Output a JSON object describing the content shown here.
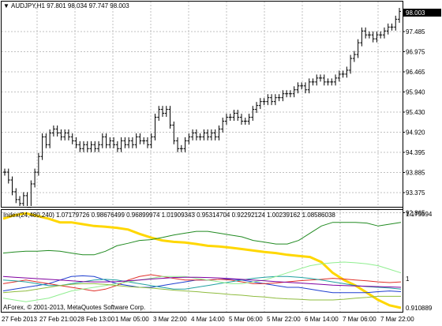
{
  "symbol_header": {
    "dropdown_glyph": "▼",
    "text": "AUDJPY,H1  97.801 98.034 97.747 98.003"
  },
  "price_tag": "98.003",
  "price_axis_labels": [
    "97.485",
    "96.975",
    "96.465",
    "95.940",
    "95.430",
    "94.920",
    "94.395",
    "93.885",
    "93.375",
    "92.865"
  ],
  "indicator": {
    "legend": "Index(24,480,240) 1.07179726 0.98676499 0.96899974 1.01909343 0.95314704 0.92292124 1.00239162 1.08586038",
    "scale_top": "1.175594",
    "scale_mid": "1",
    "scale_bottom": "0.910889"
  },
  "copyright": "AForex, © 2001-2013, MetaQuotes Software Corp.",
  "time_axis_labels": [
    "27 Feb 2013",
    "27 Feb 21:00",
    "28 Feb 13:00",
    "1 Mar 05:00",
    "3 Mar 22:00",
    "4 Mar 14:00",
    "5 Mar 06:00",
    "5 Mar 22:00",
    "6 Mar 14:00",
    "7 Mar 06:00",
    "7 Mar 22:00"
  ],
  "colors": {
    "index_yellow": "#ffd700",
    "index_green": "#228b22",
    "index_lime": "#90ee90",
    "index_red": "#e0302a",
    "index_blue": "#1f3fd0",
    "index_teal": "#20a0a0",
    "index_olive": "#8fbc3f",
    "index_purple": "#8000a0"
  },
  "chart_data": [
    {
      "type": "ohlc",
      "title": "AUDJPY,H1",
      "x_start": "27 Feb 2013",
      "x_end": "7 Mar 22:00",
      "ylim": [
        92.865,
        98.1
      ],
      "close_values": [
        93.9,
        93.7,
        93.4,
        93.2,
        93.1,
        93.3,
        93.0,
        93.6,
        93.9,
        94.3,
        94.8,
        94.6,
        94.9,
        95.0,
        94.9,
        94.8,
        94.9,
        94.8,
        94.7,
        94.6,
        94.5,
        94.6,
        94.5,
        94.6,
        94.5,
        94.6,
        94.8,
        94.6,
        94.7,
        94.6,
        94.5,
        94.7,
        94.6,
        94.7,
        94.6,
        94.8,
        94.7,
        94.7,
        94.6,
        94.8,
        95.3,
        95.5,
        95.4,
        95.5,
        95.1,
        94.7,
        94.5,
        94.5,
        94.7,
        94.8,
        94.9,
        94.8,
        94.8,
        94.9,
        94.8,
        94.9,
        94.8,
        95.0,
        95.2,
        95.3,
        95.3,
        95.4,
        95.3,
        95.2,
        95.2,
        95.3,
        95.5,
        95.6,
        95.7,
        95.7,
        95.8,
        95.7,
        95.8,
        95.8,
        95.9,
        95.9,
        95.9,
        96.0,
        96.1,
        96.1,
        96.0,
        96.2,
        96.2,
        96.3,
        96.3,
        96.2,
        96.2,
        96.2,
        96.3,
        96.4,
        96.4,
        96.5,
        96.8,
        96.9,
        97.2,
        97.5,
        97.4,
        97.4,
        97.3,
        97.4,
        97.4,
        97.5,
        97.6,
        97.6,
        97.8,
        98.0
      ]
    },
    {
      "type": "line",
      "title": "Index(24,480,240)",
      "ylim": [
        0.910889,
        1.175594
      ],
      "series": [
        {
          "color": "#ffd700",
          "values": [
            1.16,
            1.17,
            1.175,
            1.168,
            1.16,
            1.15,
            1.15,
            1.145,
            1.14,
            1.138,
            1.135,
            1.13,
            1.118,
            1.108,
            1.1,
            1.096,
            1.094,
            1.09,
            1.085,
            1.083,
            1.08,
            1.076,
            1.072,
            1.068,
            1.065,
            1.06,
            1.057,
            1.054,
            1.04,
            1.01,
            0.99,
            0.975,
            0.955,
            0.935,
            0.92,
            0.913
          ]
        },
        {
          "color": "#228b22",
          "values": [
            1.065,
            1.068,
            1.07,
            1.07,
            1.072,
            1.07,
            1.065,
            1.06,
            1.06,
            1.07,
            1.085,
            1.092,
            1.1,
            1.102,
            1.108,
            1.115,
            1.12,
            1.125,
            1.125,
            1.12,
            1.115,
            1.11,
            1.1,
            1.095,
            1.09,
            1.09,
            1.1,
            1.12,
            1.14,
            1.15,
            1.15,
            1.15,
            1.148,
            1.14,
            1.145,
            1.15
          ]
        },
        {
          "color": "#1f3fd0",
          "values": [
            0.96,
            0.965,
            0.97,
            0.975,
            0.98,
            0.99,
            1.0,
            1.002,
            1.0,
            0.99,
            0.98,
            0.975,
            0.97,
            0.97,
            0.975,
            0.98,
            0.985,
            0.99,
            0.99,
            0.992,
            0.993,
            0.99,
            0.985,
            0.98,
            0.975,
            0.97,
            0.97,
            0.965,
            0.96,
            0.955,
            0.955,
            0.955,
            0.955,
            0.958,
            0.96,
            0.958
          ]
        },
        {
          "color": "#e0302a",
          "values": [
            0.98,
            0.985,
            0.99,
            0.985,
            0.98,
            0.975,
            0.97,
            0.965,
            0.96,
            0.965,
            0.975,
            0.99,
            1.0,
            1.005,
            1.0,
            0.995,
            0.99,
            0.99,
            0.99,
            0.992,
            0.99,
            0.985,
            0.98,
            0.98,
            0.982,
            0.985,
            0.988,
            0.99,
            0.992,
            0.995,
            0.993,
            0.99,
            0.988,
            0.985,
            0.983,
            0.985
          ]
        },
        {
          "color": "#20a0a0",
          "values": [
            0.99,
            0.988,
            0.985,
            0.98,
            0.975,
            0.975,
            0.98,
            0.985,
            0.99,
            0.992,
            0.99,
            0.985,
            0.98,
            0.975,
            0.97,
            0.965,
            0.965,
            0.97,
            0.975,
            0.98,
            0.985,
            0.99,
            0.995,
            0.998,
            1.0,
            1.0,
            0.998,
            0.995,
            0.99,
            0.985,
            0.98,
            0.975,
            0.972,
            0.97,
            0.968,
            0.965
          ]
        },
        {
          "color": "#90ee90",
          "values": [
            0.94,
            0.935,
            0.93,
            0.935,
            0.94,
            0.95,
            0.96,
            0.965,
            0.97,
            0.975,
            0.98,
            0.985,
            0.99,
            0.995,
            1.0,
            1.0,
            1.0,
            0.995,
            0.99,
            0.985,
            0.98,
            0.98,
            0.985,
            0.99,
            1.0,
            1.01,
            1.02,
            1.03,
            1.035,
            1.038,
            1.04,
            1.038,
            1.035,
            1.03,
            1.02,
            1.01
          ]
        },
        {
          "color": "#8fbc3f",
          "values": [
            0.955,
            0.958,
            0.96,
            0.965,
            0.97,
            0.975,
            0.978,
            0.98,
            0.98,
            0.978,
            0.975,
            0.972,
            0.97,
            0.968,
            0.965,
            0.962,
            0.96,
            0.958,
            0.955,
            0.953,
            0.95,
            0.948,
            0.945,
            0.943,
            0.94,
            0.938,
            0.937,
            0.935,
            0.935,
            0.935,
            0.937,
            0.94,
            0.942,
            0.945,
            0.945,
            0.945
          ]
        },
        {
          "color": "#8000a0",
          "values": [
            1.0,
            0.998,
            0.996,
            0.994,
            0.992,
            0.99,
            0.988,
            0.986,
            0.985,
            0.985,
            0.986,
            0.988,
            0.99,
            0.993,
            0.995,
            0.997,
            0.998,
            0.998,
            0.997,
            0.996,
            0.994,
            0.992,
            0.99,
            0.988,
            0.986,
            0.984,
            0.982,
            0.98,
            0.978,
            0.976,
            0.975,
            0.974,
            0.973,
            0.972,
            0.971,
            0.97
          ]
        }
      ]
    }
  ]
}
